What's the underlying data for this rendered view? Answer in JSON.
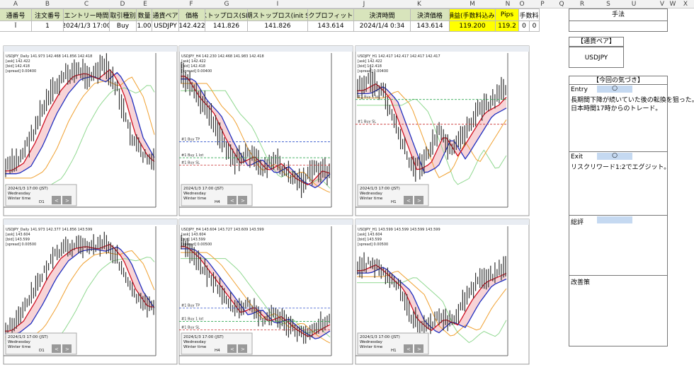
{
  "sheet": {
    "column_letters": [
      "A",
      "B",
      "C",
      "D",
      "E",
      "F",
      "G",
      "I",
      "J",
      "K",
      "M",
      "N",
      "O",
      "P",
      "Q",
      "R",
      "S",
      "U",
      "V",
      "W",
      "X"
    ],
    "headers": [
      "通番号",
      "注文番号",
      "エントリー時間",
      "取引種別",
      "数量",
      "通貨ペア",
      "価格",
      "ストップロス(SL)",
      "初期ストップロス(init SL)",
      "テイクプロフィット(TP)",
      "決済時間",
      "決済価格",
      "損益(手数料込み)",
      "Pips",
      "手数料"
    ],
    "row": [
      "ǐ",
      "1",
      "2024/1/3 17:00",
      "Buy",
      "1.00",
      "USDJPY",
      "142.422",
      "141.826",
      "141.826",
      "143.614",
      "2024/1/4 0:34",
      "143.614",
      "119.200",
      "119.2",
      "0",
      "0"
    ]
  },
  "nav_buttons": [
    "<",
    ">"
  ],
  "charts": [
    {
      "info": [
        "USDJPY_Daily 141.973 142.468 141.856 142.418",
        "[ask] 142.422",
        "[bid] 142.418",
        "[spread] 0.00400"
      ],
      "overlay": [
        "2024/1/3 17:00 (JST)",
        "Wednesday",
        "Winter time",
        "D1"
      ],
      "lines": []
    },
    {
      "info": [
        "USDJPY_H4 142.230 142.468 141.983 142.418",
        "[ask] 142.422",
        "[bid] 142.418",
        "[spread] 0.00400"
      ],
      "overlay": [
        "2024/1/3 17:00 (JST)",
        "Wednesday",
        "Winter time",
        "H4"
      ],
      "lines": [
        "#1 Buy TP",
        "#1 Buy 1 lot",
        "#1 Buy SL"
      ]
    },
    {
      "info": [
        "USDJPY_H1 142.417 142.417 142.417 142.417",
        "[ask] 142.422",
        "[bid] 142.418",
        "[spread] 0.00400"
      ],
      "overlay": [
        "2024/1/3 17:00 (JST)",
        "Wednesday",
        "Winter time",
        "H1"
      ],
      "lines": [
        "#1 Buy 1 lot",
        "#1 Buy SL"
      ]
    },
    {
      "info": [
        "USDJPY_Daily 141.973 142.377 141.856 143.599",
        "[ask] 143.604",
        "[bid] 143.599",
        "[spread] 0.00500"
      ],
      "overlay": [
        "2024/1/3 17:00 (JST)",
        "Wednesday",
        "Winter time",
        "D1"
      ],
      "lines": []
    },
    {
      "info": [
        "USDJPY_H4 143.604 143.727 143.609 143.599",
        "[ask] 143.604",
        "[bid] 143.599",
        "[spread] 0.00500"
      ],
      "overlay": [
        "2024/1/3 17:00 (JST)",
        "Wednesday",
        "Winter time",
        "H4"
      ],
      "lines": [
        "#1 Buy TP",
        "#1 Buy 1 lot",
        "#1 Buy SL"
      ]
    },
    {
      "info": [
        "USDJPY_H1 143.599 143.599 143.599 143.599",
        "[ask] 143.604",
        "[bid] 143.599",
        "[spread] 0.00500"
      ],
      "overlay": [
        "2024/1/3 17:00 (JST)",
        "Wednesday",
        "Winter time",
        "H1"
      ],
      "lines": []
    }
  ],
  "notes": {
    "method_title": "手法",
    "pair_title": "【通貨ペア】",
    "pair": "USDJPY",
    "insight_title": "【今回の気づき】",
    "entry": {
      "label": "Entry",
      "mark": "○",
      "lines": [
        "長期間下降が続いていた後の転換を狙った。",
        "日本時間17時からのトレード。"
      ]
    },
    "exit": {
      "label": "Exit",
      "mark": "○",
      "lines": [
        "リスクリワード1:2でエグジット。"
      ]
    },
    "summary": {
      "label": "総評"
    },
    "improvement": {
      "label": "改善策"
    }
  }
}
